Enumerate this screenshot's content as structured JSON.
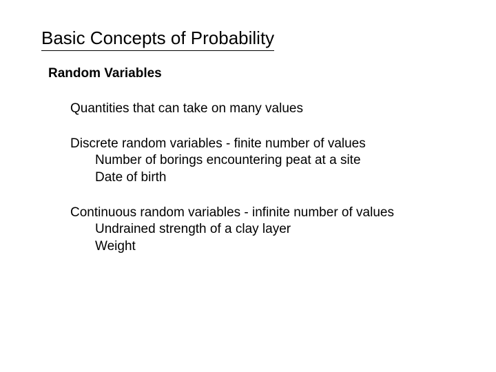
{
  "title": "Basic Concepts of Probability",
  "subtitle": "Random Variables",
  "intro": "Quantities that can take on many values",
  "discrete": {
    "heading": "Discrete random variables - finite number of values",
    "item1": "Number of borings encountering peat at a site",
    "item2": "Date of birth"
  },
  "continuous": {
    "heading": "Continuous random variables - infinite number of values",
    "item1": "Undrained strength of a clay layer",
    "item2": "Weight"
  },
  "colors": {
    "background": "#ffffff",
    "text": "#000000",
    "underline": "#000000"
  },
  "typography": {
    "title_fontsize": 26,
    "subtitle_fontsize": 19,
    "body_fontsize": 19,
    "font_family": "Arial"
  }
}
